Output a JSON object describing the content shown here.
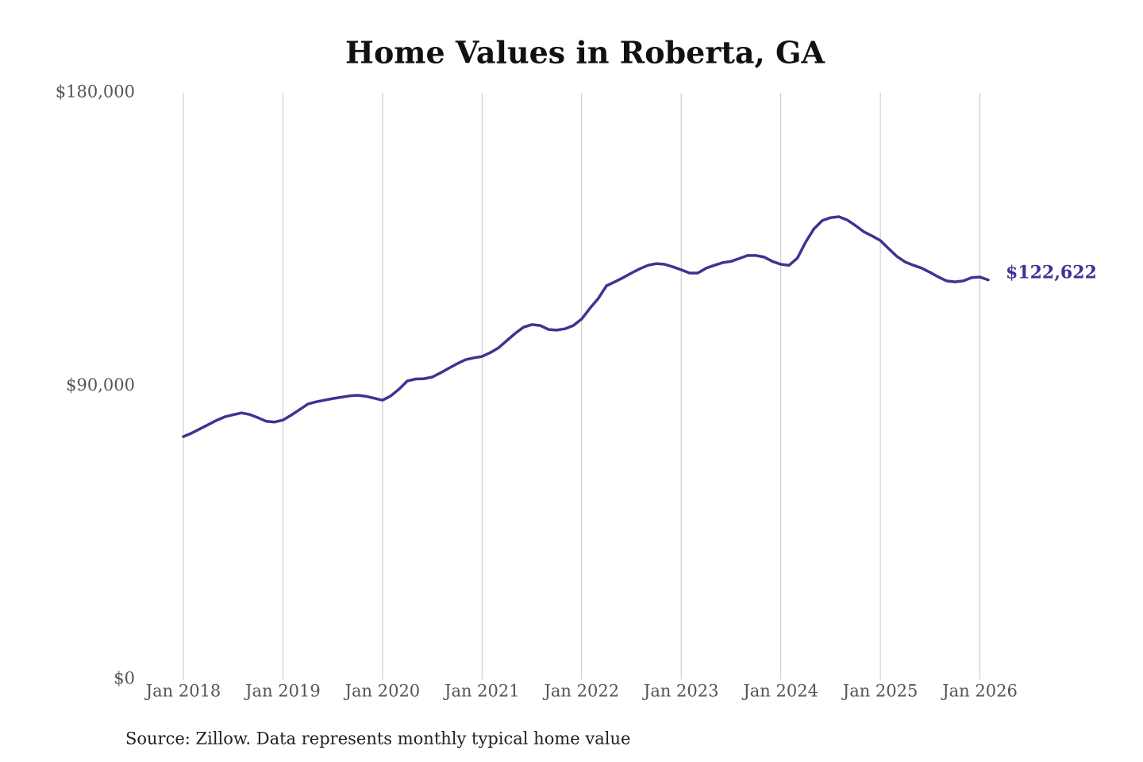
{
  "chart_data": {
    "type": "line",
    "title": "Home Values in Roberta, GA",
    "source": "Source: Zillow. Data represents monthly typical home value",
    "color": "#3b3591",
    "x": [
      "2018-01",
      "2018-02",
      "2018-03",
      "2018-04",
      "2018-05",
      "2018-06",
      "2018-07",
      "2018-08",
      "2018-09",
      "2018-10",
      "2018-11",
      "2018-12",
      "2019-01",
      "2019-02",
      "2019-03",
      "2019-04",
      "2019-05",
      "2019-06",
      "2019-07",
      "2019-08",
      "2019-09",
      "2019-10",
      "2019-11",
      "2019-12",
      "2020-01",
      "2020-02",
      "2020-03",
      "2020-04",
      "2020-05",
      "2020-06",
      "2020-07",
      "2020-08",
      "2020-09",
      "2020-10",
      "2020-11",
      "2020-12",
      "2021-01",
      "2021-02",
      "2021-03",
      "2021-04",
      "2021-05",
      "2021-06",
      "2021-07",
      "2021-08",
      "2021-09",
      "2021-10",
      "2021-11",
      "2021-12",
      "2022-01",
      "2022-02",
      "2022-03",
      "2022-04",
      "2022-05",
      "2022-06",
      "2022-07",
      "2022-08",
      "2022-09",
      "2022-10",
      "2022-11",
      "2022-12",
      "2023-01",
      "2023-02",
      "2023-03",
      "2023-04",
      "2023-05",
      "2023-06",
      "2023-07",
      "2023-08",
      "2023-09",
      "2023-10",
      "2023-11",
      "2023-12",
      "2024-01",
      "2024-02",
      "2024-03",
      "2024-04",
      "2024-05",
      "2024-06",
      "2024-07",
      "2024-08",
      "2024-09",
      "2024-10",
      "2024-11",
      "2024-12",
      "2025-01",
      "2025-02",
      "2025-03",
      "2025-04",
      "2025-05",
      "2025-06",
      "2025-07",
      "2025-08",
      "2025-09",
      "2025-10",
      "2025-11",
      "2025-12",
      "2026-01",
      "2026-02"
    ],
    "values": [
      74500,
      75600,
      76900,
      78200,
      79500,
      80600,
      81200,
      81800,
      81300,
      80300,
      79200,
      79000,
      79600,
      81100,
      82800,
      84500,
      85200,
      85700,
      86200,
      86600,
      87000,
      87200,
      86900,
      86300,
      85700,
      87000,
      89100,
      91600,
      92200,
      92300,
      92800,
      94100,
      95500,
      96900,
      98100,
      98700,
      99100,
      100300,
      101800,
      104000,
      106200,
      108100,
      108900,
      108600,
      107400,
      107200,
      107600,
      108600,
      110600,
      113900,
      116900,
      120800,
      122000,
      123300,
      124700,
      126000,
      127100,
      127600,
      127400,
      126600,
      125700,
      124700,
      124700,
      126200,
      127100,
      127900,
      128300,
      129200,
      130100,
      130100,
      129600,
      128300,
      127400,
      127100,
      129300,
      134200,
      138300,
      140800,
      141700,
      142000,
      141000,
      139300,
      137400,
      136100,
      134700,
      132200,
      129800,
      128100,
      127100,
      126200,
      124900,
      123500,
      122300,
      122000,
      122300,
      123300,
      123500,
      122622
    ],
    "value_labels": [
      null,
      null,
      null,
      null,
      null,
      null,
      null,
      null,
      null,
      null,
      null,
      null,
      null,
      null,
      null,
      null,
      null,
      null,
      null,
      null,
      null,
      null,
      null,
      null,
      null,
      null,
      null,
      null,
      null,
      null,
      null,
      null,
      null,
      null,
      null,
      null,
      null,
      null,
      null,
      null,
      null,
      null,
      null,
      null,
      null,
      null,
      null,
      null,
      null,
      null,
      null,
      null,
      null,
      null,
      null,
      null,
      null,
      null,
      null,
      null,
      null,
      null,
      null,
      null,
      null,
      null,
      null,
      null,
      null,
      null,
      null,
      null,
      null,
      null,
      null,
      null,
      null,
      null,
      null,
      null,
      null,
      null,
      null,
      null,
      null,
      null,
      null,
      null,
      null,
      null,
      null,
      null,
      null,
      null,
      null,
      null,
      null,
      "$122,622"
    ],
    "xlim": [
      "2018-01",
      "2026-02"
    ],
    "xticks": [
      {
        "value": "2018-01",
        "label": "Jan 2018"
      },
      {
        "value": "2019-01",
        "label": "Jan 2019"
      },
      {
        "value": "2020-01",
        "label": "Jan 2020"
      },
      {
        "value": "2021-01",
        "label": "Jan 2021"
      },
      {
        "value": "2022-01",
        "label": "Jan 2022"
      },
      {
        "value": "2023-01",
        "label": "Jan 2023"
      },
      {
        "value": "2024-01",
        "label": "Jan 2024"
      },
      {
        "value": "2025-01",
        "label": "Jan 2025"
      },
      {
        "value": "2026-01",
        "label": "Jan 2026"
      }
    ],
    "ylim": [
      0,
      180000
    ],
    "yticks": [
      {
        "value": 0,
        "label": "$0"
      },
      {
        "value": 90000,
        "label": "$90,000"
      },
      {
        "value": 180000,
        "label": "$180,000"
      }
    ],
    "grid": "x"
  }
}
